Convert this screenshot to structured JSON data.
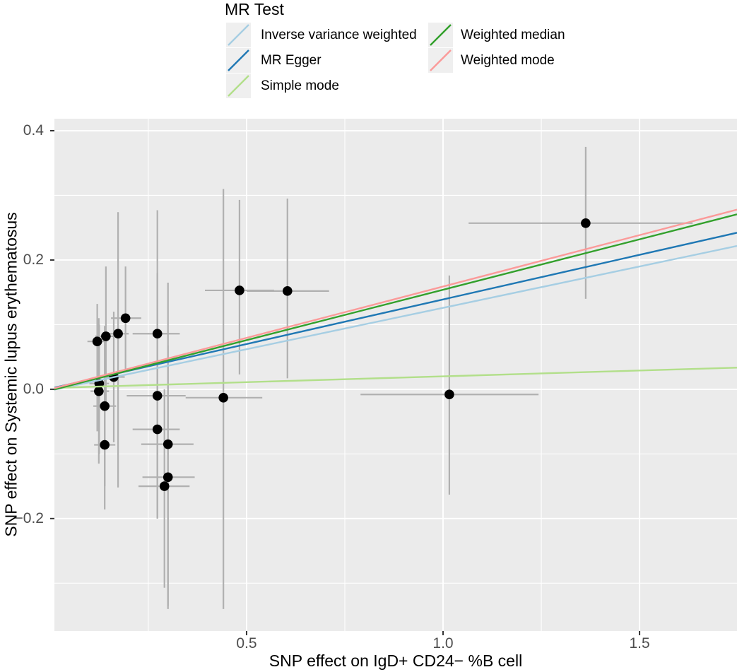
{
  "chart_data": {
    "type": "scatter",
    "description": "Mendelian randomization scatter plot: SNP effects with error bars and five MR regression lines",
    "legend_title": "MR Test",
    "xlabel": "SNP effect on IgD+ CD24− %B cell",
    "ylabel": "SNP effect on Systemic lupus erythematosus",
    "xlim": [
      0.011,
      1.748
    ],
    "ylim": [
      -0.374,
      0.4186
    ],
    "x_ticks": [
      0.5,
      1.0,
      1.5
    ],
    "x_tick_labels": [
      "0.5",
      "1.0",
      "1.5"
    ],
    "y_ticks": [
      0.4,
      0.2,
      0.0,
      -0.2
    ],
    "y_tick_labels": [
      "0.4",
      "0.2",
      "0.0",
      "−0.2"
    ],
    "x_minor_gridlines": [
      0.25,
      0.75,
      1.25,
      1.75
    ],
    "y_minor_gridlines": [
      0.3,
      0.1,
      -0.1,
      -0.3
    ],
    "grid": true,
    "legend_position": "top",
    "panel_bg": "#ebebeb",
    "grid_color": "#ffffff",
    "point_color": "#000000",
    "errorbar_color": "#b0b0b0",
    "lines": [
      {
        "name": "Inverse variance weighted",
        "color": "#a6cee3",
        "slope": 0.128,
        "intercept": -0.002
      },
      {
        "name": "MR Egger",
        "color": "#1f78b4",
        "slope": 0.138,
        "intercept": 0.001
      },
      {
        "name": "Simple mode",
        "color": "#b2df8a",
        "slope": 0.018,
        "intercept": 0.002
      },
      {
        "name": "Weighted median",
        "color": "#33a02c",
        "slope": 0.156,
        "intercept": -0.002
      },
      {
        "name": "Weighted mode",
        "color": "#fb9a99",
        "slope": 0.159,
        "intercept": 0.0
      }
    ],
    "points": [
      {
        "x": 0.12,
        "y": 0.074,
        "x_ci": [
          0.095,
          0.145
        ],
        "y_ci": [
          -0.065,
          0.132
        ]
      },
      {
        "x": 0.125,
        "y": 0.009,
        "x_ci": [
          0.1,
          0.15
        ],
        "y_ci": [
          -0.1,
          0.1
        ]
      },
      {
        "x": 0.124,
        "y": -0.003,
        "x_ci": [
          0.103,
          0.15
        ],
        "y_ci": [
          -0.115,
          0.11
        ]
      },
      {
        "x": 0.139,
        "y": -0.026,
        "x_ci": [
          0.11,
          0.168
        ],
        "y_ci": [
          -0.15,
          0.098
        ]
      },
      {
        "x": 0.139,
        "y": -0.086,
        "x_ci": [
          0.112,
          0.166
        ],
        "y_ci": [
          -0.186,
          0.014
        ]
      },
      {
        "x": 0.142,
        "y": 0.082,
        "x_ci": [
          0.115,
          0.17
        ],
        "y_ci": [
          -0.028,
          0.19
        ]
      },
      {
        "x": 0.162,
        "y": 0.019,
        "x_ci": [
          0.135,
          0.19
        ],
        "y_ci": [
          -0.082,
          0.12
        ]
      },
      {
        "x": 0.173,
        "y": 0.086,
        "x_ci": [
          0.146,
          0.2
        ],
        "y_ci": [
          -0.152,
          0.274
        ]
      },
      {
        "x": 0.192,
        "y": 0.11,
        "x_ci": [
          0.155,
          0.232
        ],
        "y_ci": [
          0.03,
          0.19
        ]
      },
      {
        "x": 0.273,
        "y": 0.086,
        "x_ci": [
          0.21,
          0.33
        ],
        "y_ci": [
          -0.1,
          0.277
        ]
      },
      {
        "x": 0.273,
        "y": -0.01,
        "x_ci": [
          0.195,
          0.345
        ],
        "y_ci": [
          -0.2,
          0.18
        ]
      },
      {
        "x": 0.273,
        "y": -0.062,
        "x_ci": [
          0.21,
          0.33
        ],
        "y_ci": [
          -0.2,
          0.126
        ]
      },
      {
        "x": 0.3,
        "y": -0.085,
        "x_ci": [
          0.232,
          0.365
        ],
        "y_ci": [
          -0.335,
          0.165
        ]
      },
      {
        "x": 0.3,
        "y": -0.136,
        "x_ci": [
          0.235,
          0.368
        ],
        "y_ci": [
          -0.34,
          0.068
        ]
      },
      {
        "x": 0.291,
        "y": -0.15,
        "x_ci": [
          0.225,
          0.355
        ],
        "y_ci": [
          -0.307,
          0.0
        ]
      },
      {
        "x": 0.441,
        "y": -0.013,
        "x_ci": [
          0.345,
          0.54
        ],
        "y_ci": [
          -0.34,
          0.31
        ]
      },
      {
        "x": 0.482,
        "y": 0.153,
        "x_ci": [
          0.394,
          0.57
        ],
        "y_ci": [
          0.023,
          0.293
        ]
      },
      {
        "x": 0.604,
        "y": 0.152,
        "x_ci": [
          0.5,
          0.71
        ],
        "y_ci": [
          0.017,
          0.295
        ]
      },
      {
        "x": 1.016,
        "y": -0.008,
        "x_ci": [
          0.79,
          1.243
        ],
        "y_ci": [
          -0.163,
          0.176
        ]
      },
      {
        "x": 1.363,
        "y": 0.257,
        "x_ci": [
          1.065,
          1.635
        ],
        "y_ci": [
          0.14,
          0.375
        ]
      }
    ]
  },
  "legend": {
    "title": "MR Test",
    "columns": [
      [
        "Inverse variance weighted",
        "MR Egger",
        "Simple mode"
      ],
      [
        "Weighted median",
        "Weighted mode"
      ]
    ]
  }
}
